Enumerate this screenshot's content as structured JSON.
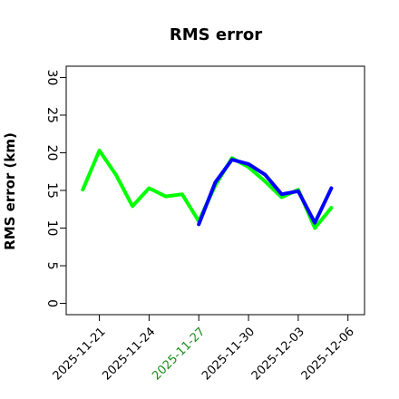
{
  "chart_data": {
    "type": "line",
    "title": "RMS error",
    "xlabel": "",
    "ylabel": "RMS error (km)",
    "ylim": [
      -1.5,
      31.5
    ],
    "yticks": [
      0,
      5,
      10,
      15,
      20,
      25,
      30
    ],
    "xlim": [
      "2025-11-19",
      "2025-12-07"
    ],
    "xticks": [
      "2025-11-21",
      "2025-11-24",
      "2025-11-27",
      "2025-11-30",
      "2025-12-03",
      "2025-12-06"
    ],
    "highlight_xtick": "2025-11-27",
    "grid": false,
    "series": [
      {
        "color": "#00ff00",
        "x": [
          "2025-11-20",
          "2025-11-21",
          "2025-11-22",
          "2025-11-23",
          "2025-11-24",
          "2025-11-25",
          "2025-11-26",
          "2025-11-27",
          "2025-11-28",
          "2025-11-29",
          "2025-11-30",
          "2025-12-01",
          "2025-12-02",
          "2025-12-03",
          "2025-12-04",
          "2025-12-05"
        ],
        "values": [
          15.1,
          20.3,
          17.1,
          12.9,
          15.3,
          14.2,
          14.5,
          10.9,
          15.7,
          19.3,
          18.1,
          16.2,
          14.1,
          15.1,
          10.0,
          12.7
        ]
      },
      {
        "color": "#0000ff",
        "x": [
          "2025-11-27",
          "2025-11-28",
          "2025-11-29",
          "2025-11-30",
          "2025-12-01",
          "2025-12-02",
          "2025-12-03",
          "2025-12-04",
          "2025-12-05"
        ],
        "values": [
          10.5,
          16.1,
          19.1,
          18.5,
          17.1,
          14.5,
          14.9,
          10.7,
          15.3
        ]
      }
    ]
  }
}
